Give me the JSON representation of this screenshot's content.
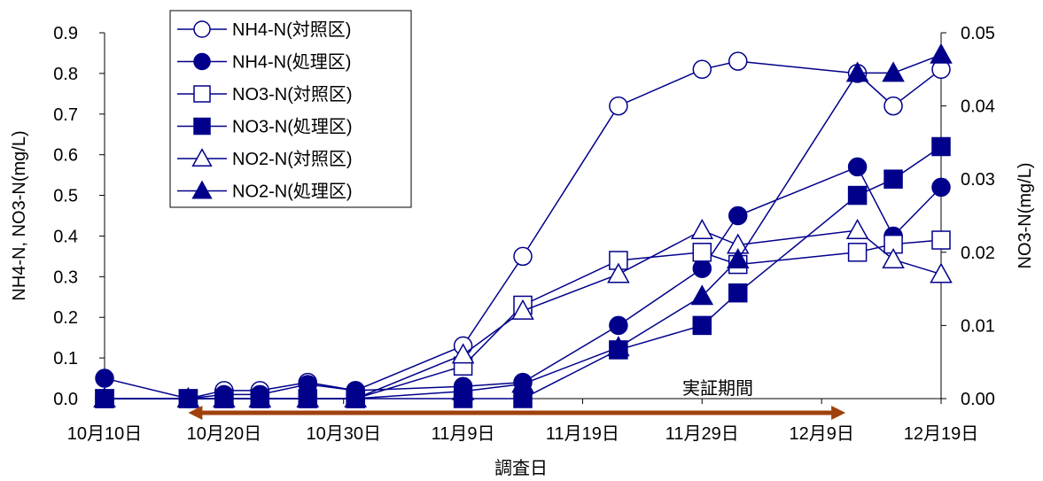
{
  "chart_data": {
    "type": "line",
    "xlabel": "調査日",
    "ylabel_left": "NH4-N, NO3-N(mg/L)",
    "ylabel_right": "NO3-N(mg/L)",
    "x_ticks": [
      "10月10日",
      "10月20日",
      "10月30日",
      "11月9日",
      "11月19日",
      "11月29日",
      "12月9日",
      "12月19日"
    ],
    "x_tick_days": [
      0,
      10,
      20,
      30,
      40,
      50,
      60,
      70
    ],
    "x_range_days": [
      0,
      70
    ],
    "y_left_range": [
      0,
      0.9
    ],
    "y_left_ticks": [
      "0.0",
      "0.1",
      "0.2",
      "0.3",
      "0.4",
      "0.5",
      "0.6",
      "0.7",
      "0.8",
      "0.9"
    ],
    "y_right_range": [
      0,
      0.05
    ],
    "y_right_ticks": [
      "0.00",
      "0.01",
      "0.02",
      "0.03",
      "0.04",
      "0.05"
    ],
    "annotation": {
      "text": "実証期間",
      "start_day": 7,
      "end_day": 62,
      "color": "#A0410D"
    },
    "legend_position": "top-left",
    "series_color": "#00008B",
    "series": [
      {
        "name": "NH4-N(対照区)",
        "axis": "left",
        "marker": "circle",
        "filled": false,
        "x": [
          0,
          7,
          10,
          13,
          17,
          21,
          30,
          35,
          43,
          50,
          53,
          63,
          66,
          70
        ],
        "values": [
          0.0,
          0.0,
          0.02,
          0.02,
          0.04,
          0.02,
          0.13,
          0.35,
          0.72,
          0.81,
          0.83,
          0.8,
          0.72,
          0.81
        ]
      },
      {
        "name": "NH4-N(処理区)",
        "axis": "left",
        "marker": "circle",
        "filled": true,
        "x": [
          0,
          7,
          10,
          13,
          17,
          21,
          30,
          35,
          43,
          50,
          53,
          63,
          66,
          70
        ],
        "values": [
          0.05,
          0.0,
          0.01,
          0.01,
          0.035,
          0.02,
          0.03,
          0.04,
          0.18,
          0.32,
          0.45,
          0.57,
          0.4,
          0.52
        ]
      },
      {
        "name": "NO3-N(対照区)",
        "axis": "left",
        "marker": "square",
        "filled": false,
        "x": [
          0,
          7,
          10,
          13,
          17,
          21,
          30,
          35,
          43,
          50,
          53,
          63,
          66,
          70
        ],
        "values": [
          0.0,
          0.0,
          0.0,
          0.0,
          0.0,
          0.0,
          0.08,
          0.23,
          0.34,
          0.36,
          0.33,
          0.36,
          0.38,
          0.39
        ]
      },
      {
        "name": "NO3-N(処理区)",
        "axis": "left",
        "marker": "square",
        "filled": true,
        "x": [
          0,
          7,
          10,
          13,
          17,
          21,
          30,
          35,
          43,
          50,
          53,
          63,
          66,
          70
        ],
        "values": [
          0.0,
          0.0,
          0.0,
          0.0,
          0.0,
          0.0,
          0.0,
          0.0,
          0.12,
          0.18,
          0.26,
          0.5,
          0.54,
          0.62
        ]
      },
      {
        "name": "NO2-N(対照区)",
        "axis": "right",
        "marker": "triangle",
        "filled": false,
        "x": [
          0,
          7,
          10,
          13,
          17,
          21,
          30,
          35,
          43,
          50,
          53,
          63,
          66,
          70
        ],
        "values": [
          0.0,
          0.0,
          0.0,
          0.0,
          0.0,
          0.0,
          0.006,
          0.012,
          0.017,
          0.023,
          0.021,
          0.023,
          0.019,
          0.017
        ]
      },
      {
        "name": "NO2-N(処理区)",
        "axis": "right",
        "marker": "triangle",
        "filled": true,
        "x": [
          0,
          7,
          10,
          13,
          17,
          21,
          30,
          35,
          43,
          50,
          53,
          63,
          66,
          70
        ],
        "values": [
          0.0,
          0.0,
          0.0,
          0.0,
          0.0,
          0.0,
          0.001,
          0.002,
          0.007,
          0.014,
          0.019,
          0.0445,
          0.0445,
          0.047
        ]
      }
    ]
  }
}
